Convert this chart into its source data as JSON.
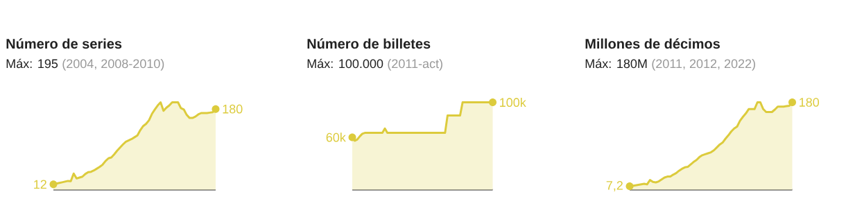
{
  "chart_data": [
    {
      "type": "area",
      "title": "Número de series",
      "subtitle": "Máx: 195",
      "annotations": [
        "(2004, 2008-2010)"
      ],
      "categories": [
        null,
        null,
        null,
        null,
        null,
        null,
        null,
        null,
        null,
        null,
        null,
        null,
        null,
        null,
        null,
        null,
        null,
        null,
        null,
        null,
        null,
        null,
        null,
        null,
        null,
        null,
        null,
        null,
        null,
        null,
        null,
        null,
        null,
        null,
        null,
        null,
        null,
        null,
        null,
        null,
        null,
        null,
        null,
        null,
        null,
        null,
        null,
        null,
        null,
        null,
        null,
        null,
        null,
        null,
        null,
        null,
        null
      ],
      "series": [
        {
          "color": "#dccb3c",
          "values": [
            12,
            13.5,
            15,
            16.5,
            18,
            19.5,
            19,
            36,
            25,
            27,
            29,
            35,
            39,
            40,
            43,
            47,
            51,
            56,
            64,
            70,
            72,
            79,
            87,
            94,
            101,
            107,
            110,
            113,
            117,
            121,
            133,
            142,
            147,
            155,
            169,
            179,
            188,
            195,
            176,
            183,
            188,
            195,
            195,
            195,
            182,
            179,
            167,
            160,
            160,
            163,
            168,
            171,
            171,
            171,
            172,
            173,
            180
          ],
          "value_labels": [
            "12",
            null,
            null,
            null,
            null,
            null,
            null,
            null,
            null,
            null,
            null,
            null,
            null,
            null,
            null,
            null,
            null,
            null,
            null,
            null,
            null,
            null,
            null,
            null,
            null,
            null,
            null,
            null,
            null,
            null,
            null,
            null,
            null,
            null,
            null,
            null,
            null,
            null,
            null,
            null,
            null,
            null,
            null,
            null,
            null,
            null,
            null,
            null,
            null,
            null,
            null,
            null,
            null,
            null,
            null,
            null,
            "180"
          ]
        }
      ]
    },
    {
      "type": "area",
      "title": "Número de billetes",
      "subtitle": "Máx: 100.000",
      "annotations": [
        "(2011-act)"
      ],
      "categories": [
        null,
        null,
        null,
        null,
        null,
        null,
        null,
        null,
        null,
        null,
        null,
        null,
        null,
        null,
        null,
        null,
        null,
        null,
        null,
        null,
        null,
        null,
        null,
        null,
        null,
        null,
        null,
        null,
        null,
        null,
        null,
        null,
        null,
        null,
        null,
        null,
        null,
        null,
        null,
        null,
        null,
        null,
        null,
        null,
        null,
        null,
        null,
        null,
        null,
        null,
        null,
        null,
        null,
        null,
        null,
        null,
        null
      ],
      "series": [
        {
          "color": "#dccb3c",
          "values": [
            60000,
            56000,
            57500,
            61000,
            64000,
            65000,
            65000,
            65000,
            65000,
            65000,
            65000,
            65000,
            65000,
            70000,
            65000,
            65000,
            65000,
            65000,
            65000,
            65000,
            65000,
            65000,
            65000,
            65000,
            65000,
            65000,
            65000,
            65000,
            65000,
            65000,
            65000,
            65000,
            65000,
            65000,
            65000,
            65000,
            65000,
            65000,
            85000,
            85000,
            85000,
            85000,
            85000,
            85000,
            100000,
            100000,
            100000,
            100000,
            100000,
            100000,
            100000,
            100000,
            100000,
            100000,
            100000,
            100000,
            100000
          ],
          "value_labels": [
            "60k",
            null,
            null,
            null,
            null,
            null,
            null,
            null,
            null,
            null,
            null,
            null,
            null,
            null,
            null,
            null,
            null,
            null,
            null,
            null,
            null,
            null,
            null,
            null,
            null,
            null,
            null,
            null,
            null,
            null,
            null,
            null,
            null,
            null,
            null,
            null,
            null,
            null,
            null,
            null,
            null,
            null,
            null,
            null,
            null,
            null,
            null,
            null,
            null,
            null,
            null,
            null,
            null,
            null,
            null,
            null,
            "100k"
          ]
        }
      ]
    },
    {
      "type": "area",
      "title": "Millones de décimos",
      "subtitle": "Máx: 180M",
      "annotations": [
        "(2011, 2012, 2022)"
      ],
      "categories": [
        null,
        null,
        null,
        null,
        null,
        null,
        null,
        null,
        null,
        null,
        null,
        null,
        null,
        null,
        null,
        null,
        null,
        null,
        null,
        null,
        null,
        null,
        null,
        null,
        null,
        null,
        null,
        null,
        null,
        null,
        null,
        null,
        null,
        null,
        null,
        null,
        null,
        null,
        null,
        null,
        null,
        null,
        null,
        null,
        null,
        null,
        null,
        null,
        null,
        null,
        null,
        null,
        null,
        null,
        null,
        null,
        null
      ],
      "series": [
        {
          "color": "#dccb3c",
          "values": [
            7.2,
            8,
            9,
            10,
            11,
            12,
            11,
            20,
            16,
            15,
            17,
            21,
            25,
            27,
            27,
            31,
            34,
            39,
            43,
            46,
            47,
            52,
            57,
            61,
            67,
            71,
            73,
            75,
            77,
            81,
            87,
            93,
            97,
            105,
            112,
            120,
            126,
            130,
            142,
            150,
            157,
            166,
            166,
            166,
            180,
            180,
            166,
            160,
            160,
            160,
            165,
            171,
            171,
            171,
            172,
            173,
            180
          ],
          "value_labels": [
            "7,2",
            null,
            null,
            null,
            null,
            null,
            null,
            null,
            null,
            null,
            null,
            null,
            null,
            null,
            null,
            null,
            null,
            null,
            null,
            null,
            null,
            null,
            null,
            null,
            null,
            null,
            null,
            null,
            null,
            null,
            null,
            null,
            null,
            null,
            null,
            null,
            null,
            null,
            null,
            null,
            null,
            null,
            null,
            null,
            null,
            null,
            null,
            null,
            null,
            null,
            null,
            null,
            null,
            null,
            null,
            null,
            "180"
          ]
        }
      ]
    }
  ]
}
